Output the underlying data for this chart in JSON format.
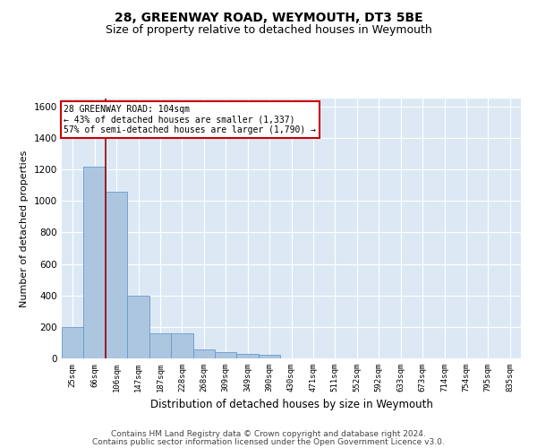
{
  "title1": "28, GREENWAY ROAD, WEYMOUTH, DT3 5BE",
  "title2": "Size of property relative to detached houses in Weymouth",
  "xlabel": "Distribution of detached houses by size in Weymouth",
  "ylabel": "Number of detached properties",
  "categories": [
    "25sqm",
    "66sqm",
    "106sqm",
    "147sqm",
    "187sqm",
    "228sqm",
    "268sqm",
    "309sqm",
    "349sqm",
    "390sqm",
    "430sqm",
    "471sqm",
    "511sqm",
    "552sqm",
    "592sqm",
    "633sqm",
    "673sqm",
    "714sqm",
    "754sqm",
    "795sqm",
    "835sqm"
  ],
  "values": [
    200,
    1220,
    1060,
    400,
    160,
    160,
    55,
    40,
    30,
    20,
    0,
    0,
    0,
    0,
    0,
    0,
    0,
    0,
    0,
    0,
    0
  ],
  "bar_color": "#adc6e0",
  "bar_edge_color": "#6699cc",
  "background_color": "#dce9f5",
  "grid_color": "#ffffff",
  "vline_color": "#990000",
  "annotation_line1": "28 GREENWAY ROAD: 104sqm",
  "annotation_line2": "← 43% of detached houses are smaller (1,337)",
  "annotation_line3": "57% of semi-detached houses are larger (1,790) →",
  "annotation_box_color": "#ffffff",
  "annotation_box_edge": "#cc0000",
  "ylim": [
    0,
    1650
  ],
  "yticks": [
    0,
    200,
    400,
    600,
    800,
    1000,
    1200,
    1400,
    1600
  ],
  "footer_line1": "Contains HM Land Registry data © Crown copyright and database right 2024.",
  "footer_line2": "Contains public sector information licensed under the Open Government Licence v3.0.",
  "title1_fontsize": 10,
  "title2_fontsize": 9,
  "xlabel_fontsize": 8.5,
  "ylabel_fontsize": 8,
  "footer_fontsize": 6.5,
  "fig_bg": "#ffffff"
}
